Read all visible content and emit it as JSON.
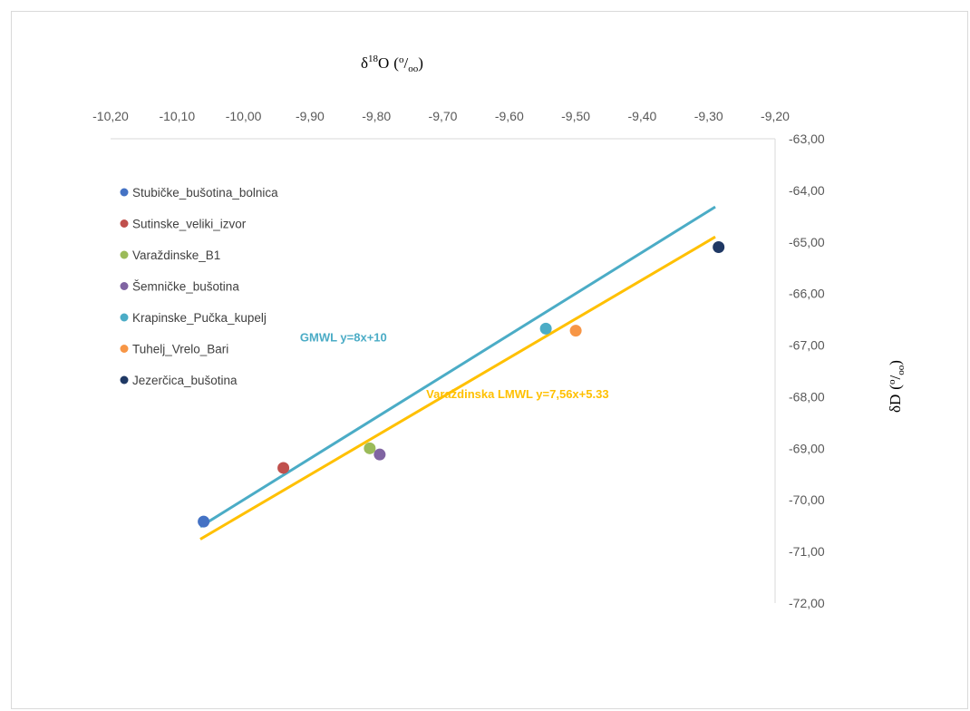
{
  "chart_data": {
    "type": "scatter",
    "xlabel": "δ18O (‰)",
    "xlabel_parts": {
      "delta": "δ",
      "sup": "18",
      "letter": "O",
      "open": "(",
      "num": "o",
      "slash": "/",
      "den": "oo",
      "close": ")"
    },
    "ylabel": "δD (‰)",
    "ylabel_parts": {
      "delta": "δD",
      "open": "(",
      "num": "o",
      "slash": "/",
      "den": "oo",
      "close": ")"
    },
    "xlim": [
      -10.2,
      -9.2
    ],
    "ylim": [
      -72,
      -63
    ],
    "x_ticks": [
      "-10,20",
      "-10,10",
      "-10,00",
      "-9,90",
      "-9,80",
      "-9,70",
      "-9,60",
      "-9,50",
      "-9,40",
      "-9,30",
      "-9,20"
    ],
    "y_ticks": [
      "-63,00",
      "-64,00",
      "-65,00",
      "-66,00",
      "-67,00",
      "-68,00",
      "-69,00",
      "-70,00",
      "-71,00",
      "-72,00"
    ],
    "x_axis_position": "top",
    "y_axis_position": "right",
    "legend_position": "left",
    "grid": false,
    "series": [
      {
        "name": "Stubičke_bušotina_bolnica",
        "color": "#4472c4",
        "x": -10.06,
        "y": -70.42
      },
      {
        "name": "Sutinske_veliki_izvor",
        "color": "#c0504d",
        "x": -9.94,
        "y": -69.38
      },
      {
        "name": "Varaždinske_B1",
        "color": "#9bbb59",
        "x": -9.81,
        "y": -69.0
      },
      {
        "name": "Šemničke_bušotina",
        "color": "#8064a2",
        "x": -9.795,
        "y": -69.12
      },
      {
        "name": "Krapinske_Pučka_kupelj",
        "color": "#4bacc6",
        "x": -9.545,
        "y": -66.68
      },
      {
        "name": "Tuhelj_Vrelo_Bari",
        "color": "#f79646",
        "x": -9.5,
        "y": -66.72
      },
      {
        "name": "Jezerčica_bušotina",
        "color": "#1f3864",
        "x": -9.285,
        "y": -65.1
      }
    ],
    "lines": [
      {
        "label": "GMWL y=8x+10",
        "color": "#4bacc6",
        "slope": 8,
        "intercept": 10,
        "x_range": [
          -10.065,
          -9.29
        ]
      },
      {
        "label": "Varaždinska LMWL y=7,56x+5.33",
        "color": "#ffc000",
        "slope": 7.56,
        "intercept": 5.33,
        "x_range": [
          -10.065,
          -9.29
        ]
      }
    ]
  }
}
